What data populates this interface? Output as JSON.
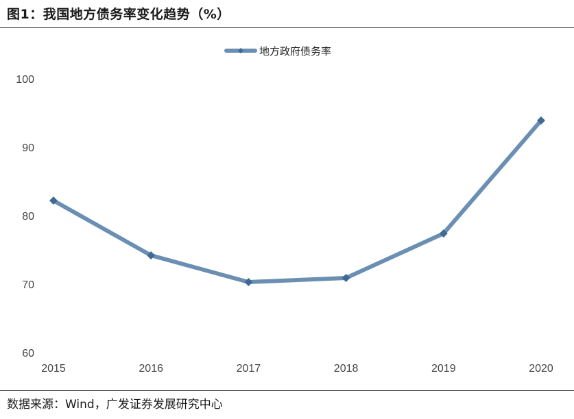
{
  "figure": {
    "title": "图1：我国地方债务率变化趋势（%）",
    "source": "数据来源：Wind，广发证券发展研究中心"
  },
  "chart_data": {
    "type": "line",
    "title": "图1：我国地方债务率变化趋势（%）",
    "xlabel": "",
    "ylabel": "",
    "categories": [
      "2015",
      "2016",
      "2017",
      "2018",
      "2019",
      "2020"
    ],
    "series": [
      {
        "name": "地方政府债务率",
        "values": [
          82.2,
          74.2,
          70.3,
          70.9,
          77.4,
          93.9
        ],
        "color": "#6b8fb3",
        "marker_color": "#3f6a95"
      }
    ],
    "ylim": [
      60,
      100
    ],
    "yticks": [
      60,
      70,
      80,
      90,
      100
    ],
    "grid": false,
    "legend_position": "top-center"
  }
}
